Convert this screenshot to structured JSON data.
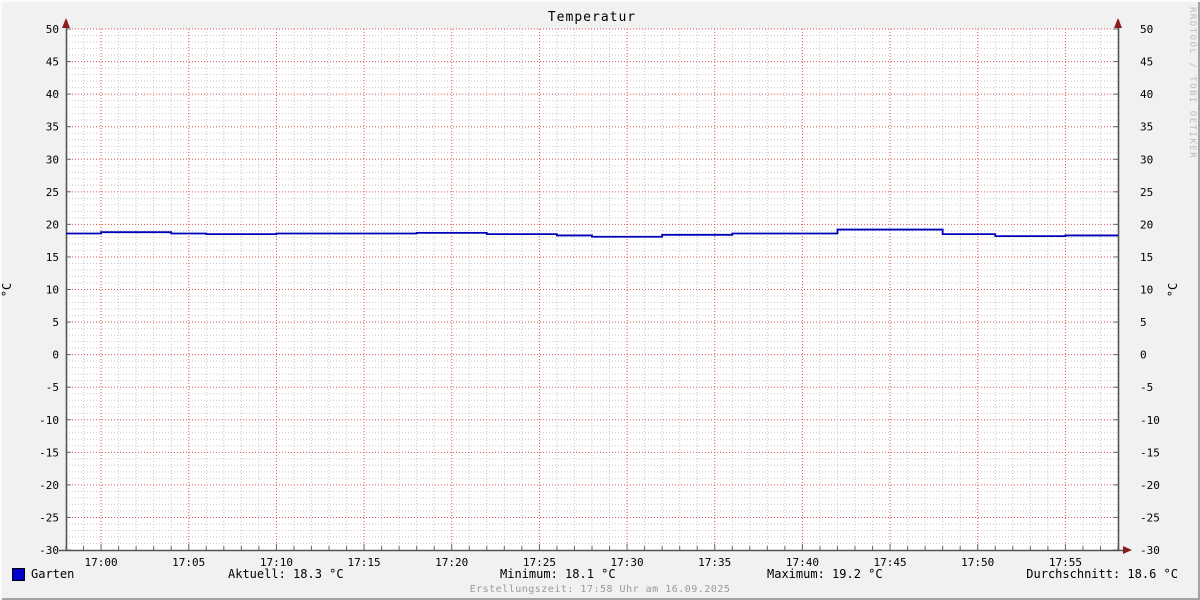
{
  "title": "Temperatur",
  "y_axis_unit": "°C",
  "watermark": "RRDTOOL / TOBI OETIKER",
  "legend": {
    "series_label": "Garten",
    "stats": [
      {
        "label": "Aktuell",
        "value_c": 18.3,
        "text": "Aktuell: 18.3 °C"
      },
      {
        "label": "Minimum",
        "value_c": 18.1,
        "text": "Minimum: 18.1 °C"
      },
      {
        "label": "Maximum",
        "value_c": 19.2,
        "text": "Maximum: 19.2 °C"
      },
      {
        "label": "Durchschnitt",
        "value_c": 18.6,
        "text": "Durchschnitt: 18.6 °C"
      }
    ]
  },
  "footer": {
    "creation_text": "Erstellungszeit: 17:58 Uhr am 16.09.2025"
  },
  "chart_data": {
    "type": "line",
    "title": "Temperatur",
    "ylabel": "°C",
    "ylim": [
      -30,
      50
    ],
    "y_major_step": 5,
    "y_minor_step": 1,
    "y_ticks": [
      50,
      45,
      40,
      35,
      30,
      25,
      20,
      15,
      10,
      5,
      0,
      -5,
      -10,
      -15,
      -20,
      -25,
      -30
    ],
    "x_start": "16:58",
    "x_end": "17:58",
    "x_total_minutes": 60,
    "x_minor_step_min": 1,
    "x_ticks": [
      {
        "minute": 2,
        "label": "17:00"
      },
      {
        "minute": 7,
        "label": "17:05"
      },
      {
        "minute": 12,
        "label": "17:10"
      },
      {
        "minute": 17,
        "label": "17:15"
      },
      {
        "minute": 22,
        "label": "17:20"
      },
      {
        "minute": 27,
        "label": "17:25"
      },
      {
        "minute": 32,
        "label": "17:30"
      },
      {
        "minute": 37,
        "label": "17:35"
      },
      {
        "minute": 42,
        "label": "17:40"
      },
      {
        "minute": 47,
        "label": "17:45"
      },
      {
        "minute": 52,
        "label": "17:50"
      },
      {
        "minute": 57,
        "label": "17:55"
      }
    ],
    "canvas_color": "#ffffff",
    "grid": {
      "major_color": "#e05555",
      "minor_color": "#c9c9c9",
      "style": "dotted"
    },
    "axis_color": "#545454",
    "arrow_color": "#8c1c1c",
    "legend_position": "bottom",
    "series": [
      {
        "name": "Garten",
        "color": "#0000b8",
        "swatch_color": "#0000cc",
        "line_style": "step",
        "stats": {
          "aktuell": 18.3,
          "minimum": 18.1,
          "maximum": 19.2,
          "durchschnitt": 18.6
        },
        "points": [
          {
            "time": "16:58",
            "minute": 0,
            "value": 18.6
          },
          {
            "time": "17:00",
            "minute": 2,
            "value": 18.8
          },
          {
            "time": "17:04",
            "minute": 6,
            "value": 18.6
          },
          {
            "time": "17:06",
            "minute": 8,
            "value": 18.5
          },
          {
            "time": "17:10",
            "minute": 12,
            "value": 18.6
          },
          {
            "time": "17:18",
            "minute": 20,
            "value": 18.7
          },
          {
            "time": "17:22",
            "minute": 24,
            "value": 18.5
          },
          {
            "time": "17:26",
            "minute": 28,
            "value": 18.3
          },
          {
            "time": "17:28",
            "minute": 30,
            "value": 18.1
          },
          {
            "time": "17:32",
            "minute": 34,
            "value": 18.4
          },
          {
            "time": "17:36",
            "minute": 38,
            "value": 18.6
          },
          {
            "time": "17:42",
            "minute": 44,
            "value": 19.2
          },
          {
            "time": "17:48",
            "minute": 50,
            "value": 18.5
          },
          {
            "time": "17:51",
            "minute": 53,
            "value": 18.2
          },
          {
            "time": "17:55",
            "minute": 57,
            "value": 18.3
          },
          {
            "time": "17:58",
            "minute": 60,
            "value": 18.3
          }
        ]
      }
    ]
  }
}
